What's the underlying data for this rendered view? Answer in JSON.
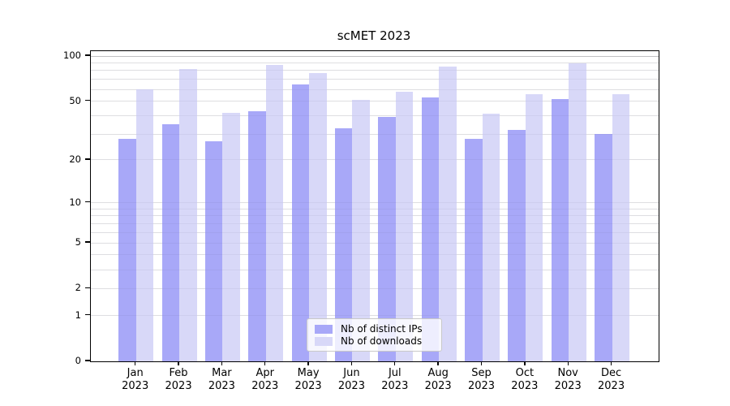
{
  "chart_data": {
    "type": "bar",
    "title": "scMET 2023",
    "categories": [
      "Jan",
      "Feb",
      "Mar",
      "Apr",
      "May",
      "Jun",
      "Jul",
      "Aug",
      "Sep",
      "Oct",
      "Nov",
      "Dec"
    ],
    "year_label": "2023",
    "series": [
      {
        "name": "Nb of distinct IPs",
        "color": "#a8a8f8",
        "values": [
          28,
          35,
          27,
          43,
          65,
          33,
          39,
          53,
          28,
          32,
          52,
          30
        ]
      },
      {
        "name": "Nb of downloads",
        "color": "#d8d8f8",
        "values": [
          60,
          82,
          42,
          87,
          77,
          51,
          58,
          85,
          41,
          56,
          89,
          56
        ]
      }
    ],
    "xlabel": "",
    "ylabel": "",
    "y_axis": {
      "scale": "log1p",
      "ticks": [
        0,
        1,
        2,
        5,
        10,
        20,
        50,
        100
      ],
      "range": [
        0,
        105
      ]
    },
    "gridline_values": [
      1,
      2,
      3,
      4,
      5,
      6,
      7,
      8,
      9,
      10,
      20,
      30,
      40,
      50,
      60,
      70,
      80,
      90,
      100
    ],
    "legend": {
      "position": "lower-center",
      "labels": [
        "Nb of distinct IPs",
        "Nb of downloads"
      ]
    },
    "colors": {
      "grid": "#eaeaea",
      "grid_top": "#c9c9c9",
      "axis": "#000000",
      "text": "#000000",
      "grid_overlay": "rgba(90,90,125,0.08)",
      "legend_border": "#c9c9c9"
    }
  }
}
